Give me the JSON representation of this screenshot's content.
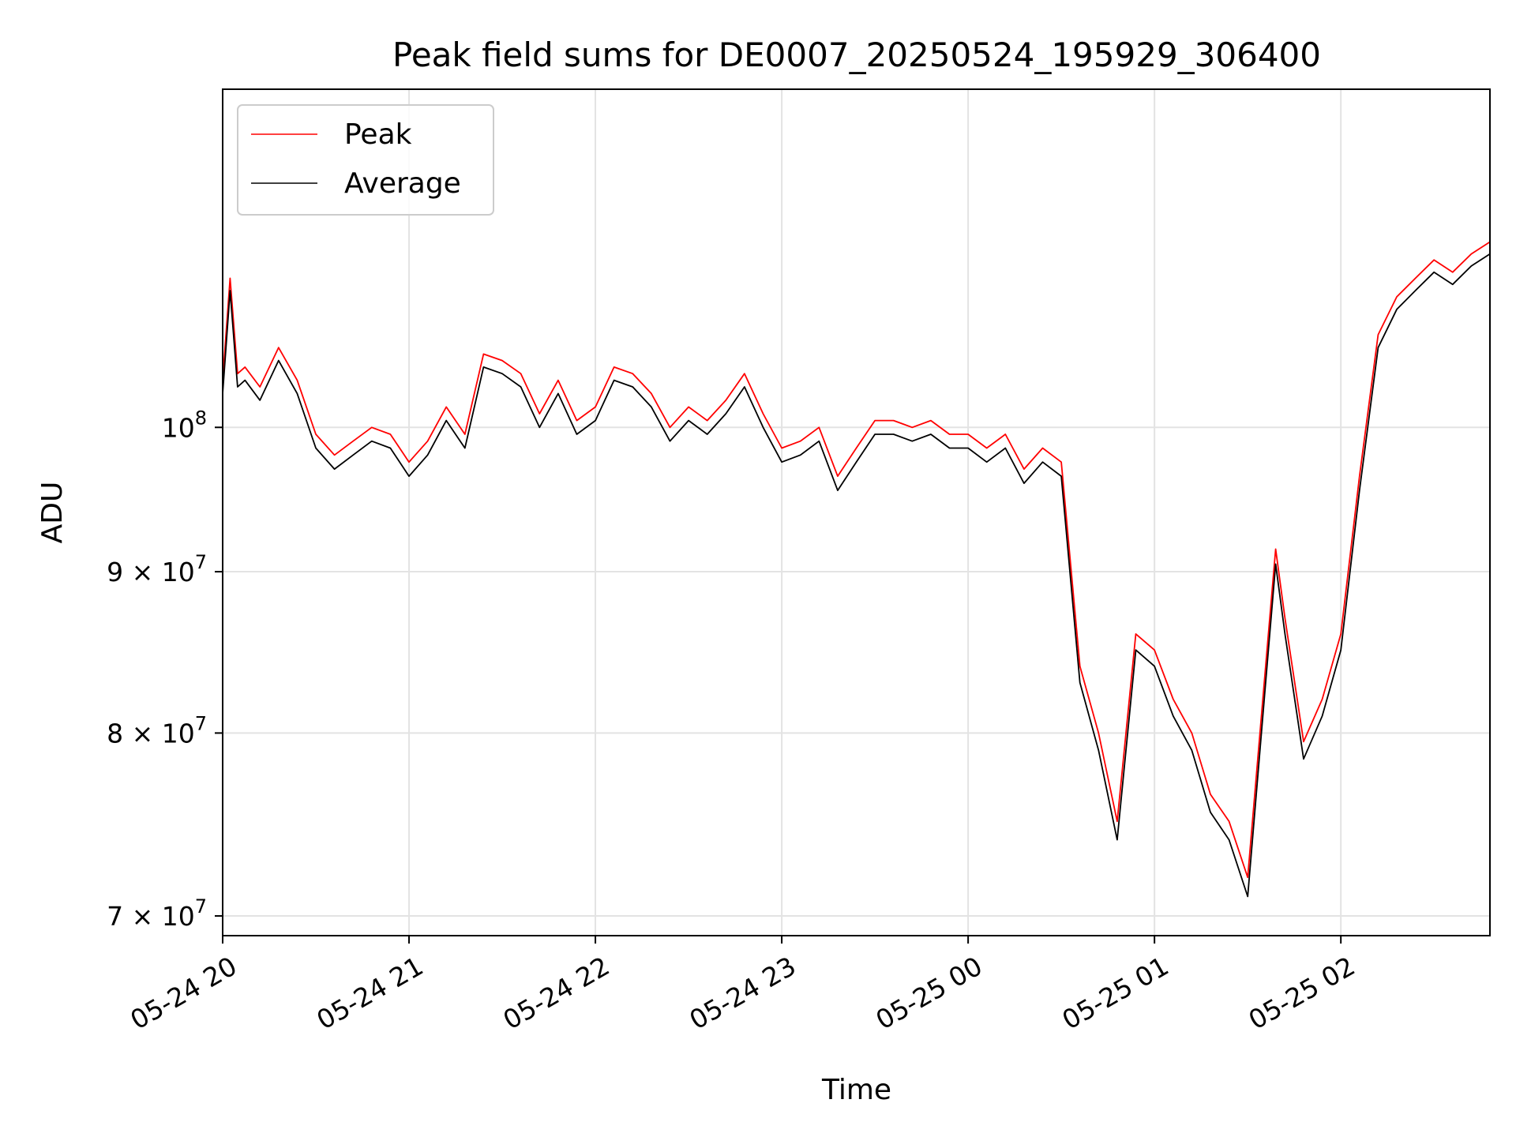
{
  "chart_data": {
    "type": "line",
    "title": "Peak field sums for DE0007_20250524_195929_306400",
    "xlabel": "Time",
    "ylabel": "ADU",
    "y_scale": "log",
    "ylim": [
      69000000,
      128000000
    ],
    "x_range_hours": [
      0,
      6.8
    ],
    "grid": true,
    "legend_position": "upper-left",
    "x_ticks": [
      {
        "hour": 0,
        "label": "05-24 20"
      },
      {
        "hour": 1,
        "label": "05-24 21"
      },
      {
        "hour": 2,
        "label": "05-24 22"
      },
      {
        "hour": 3,
        "label": "05-24 23"
      },
      {
        "hour": 4,
        "label": "05-25 00"
      },
      {
        "hour": 5,
        "label": "05-25 01"
      },
      {
        "hour": 6,
        "label": "05-25 02"
      }
    ],
    "y_ticks": [
      {
        "value": 70000000,
        "mantissa": "7",
        "exponent": "7"
      },
      {
        "value": 80000000,
        "mantissa": "8",
        "exponent": "7"
      },
      {
        "value": 90000000,
        "mantissa": "9",
        "exponent": "7"
      },
      {
        "value": 100000000,
        "mantissa": "",
        "exponent": "8"
      }
    ],
    "series": [
      {
        "name": "Peak",
        "color": "#ff0000",
        "x": [
          0.0,
          0.04,
          0.08,
          0.12,
          0.2,
          0.3,
          0.4,
          0.5,
          0.6,
          0.7,
          0.8,
          0.9,
          1.0,
          1.1,
          1.2,
          1.3,
          1.4,
          1.5,
          1.6,
          1.7,
          1.8,
          1.9,
          2.0,
          2.1,
          2.2,
          2.3,
          2.4,
          2.5,
          2.6,
          2.7,
          2.8,
          2.9,
          3.0,
          3.1,
          3.2,
          3.3,
          3.4,
          3.5,
          3.6,
          3.7,
          3.8,
          3.9,
          4.0,
          4.1,
          4.2,
          4.3,
          4.4,
          4.5,
          4.6,
          4.7,
          4.8,
          4.9,
          5.0,
          5.1,
          5.2,
          5.3,
          5.4,
          5.5,
          5.6,
          5.65,
          5.7,
          5.8,
          5.9,
          6.0,
          6.1,
          6.2,
          6.3,
          6.4,
          6.5,
          6.6,
          6.7,
          6.8
        ],
        "values": [
          103500000,
          111500000,
          104000000,
          104500000,
          103000000,
          106000000,
          103500000,
          99500000,
          98000000,
          99000000,
          100000000,
          99500000,
          97500000,
          99000000,
          101500000,
          99500000,
          105500000,
          105000000,
          104000000,
          101000000,
          103500000,
          100500000,
          101500000,
          104500000,
          104000000,
          102500000,
          100000000,
          101500000,
          100500000,
          102000000,
          104000000,
          101000000,
          98500000,
          99000000,
          100000000,
          96500000,
          98500000,
          100500000,
          100500000,
          100000000,
          100500000,
          99500000,
          99500000,
          98500000,
          99500000,
          97000000,
          98500000,
          97500000,
          84000000,
          80000000,
          75000000,
          86000000,
          85000000,
          82000000,
          80000000,
          76500000,
          75000000,
          72000000,
          84500000,
          91500000,
          87000000,
          79500000,
          82000000,
          86000000,
          96500000,
          107000000,
          110000000,
          111500000,
          113000000,
          112000000,
          113500000,
          114500000
        ]
      },
      {
        "name": "Average",
        "color": "#000000",
        "x": [
          0.0,
          0.04,
          0.08,
          0.12,
          0.2,
          0.3,
          0.4,
          0.5,
          0.6,
          0.7,
          0.8,
          0.9,
          1.0,
          1.1,
          1.2,
          1.3,
          1.4,
          1.5,
          1.6,
          1.7,
          1.8,
          1.9,
          2.0,
          2.1,
          2.2,
          2.3,
          2.4,
          2.5,
          2.6,
          2.7,
          2.8,
          2.9,
          3.0,
          3.1,
          3.2,
          3.3,
          3.4,
          3.5,
          3.6,
          3.7,
          3.8,
          3.9,
          4.0,
          4.1,
          4.2,
          4.3,
          4.4,
          4.5,
          4.6,
          4.7,
          4.8,
          4.9,
          5.0,
          5.1,
          5.2,
          5.3,
          5.4,
          5.5,
          5.6,
          5.65,
          5.7,
          5.8,
          5.9,
          6.0,
          6.1,
          6.2,
          6.3,
          6.4,
          6.5,
          6.6,
          6.7,
          6.8
        ],
        "values": [
          102500000,
          110500000,
          103000000,
          103500000,
          102000000,
          105000000,
          102500000,
          98500000,
          97000000,
          98000000,
          99000000,
          98500000,
          96500000,
          98000000,
          100500000,
          98500000,
          104500000,
          104000000,
          103000000,
          100000000,
          102500000,
          99500000,
          100500000,
          103500000,
          103000000,
          101500000,
          99000000,
          100500000,
          99500000,
          101000000,
          103000000,
          100000000,
          97500000,
          98000000,
          99000000,
          95500000,
          97500000,
          99500000,
          99500000,
          99000000,
          99500000,
          98500000,
          98500000,
          97500000,
          98500000,
          96000000,
          97500000,
          96500000,
          83000000,
          79000000,
          74000000,
          85000000,
          84000000,
          81000000,
          79000000,
          75500000,
          74000000,
          71000000,
          83500000,
          90500000,
          86000000,
          78500000,
          81000000,
          85000000,
          95500000,
          106000000,
          109000000,
          110500000,
          112000000,
          111000000,
          112500000,
          113500000
        ]
      }
    ]
  }
}
